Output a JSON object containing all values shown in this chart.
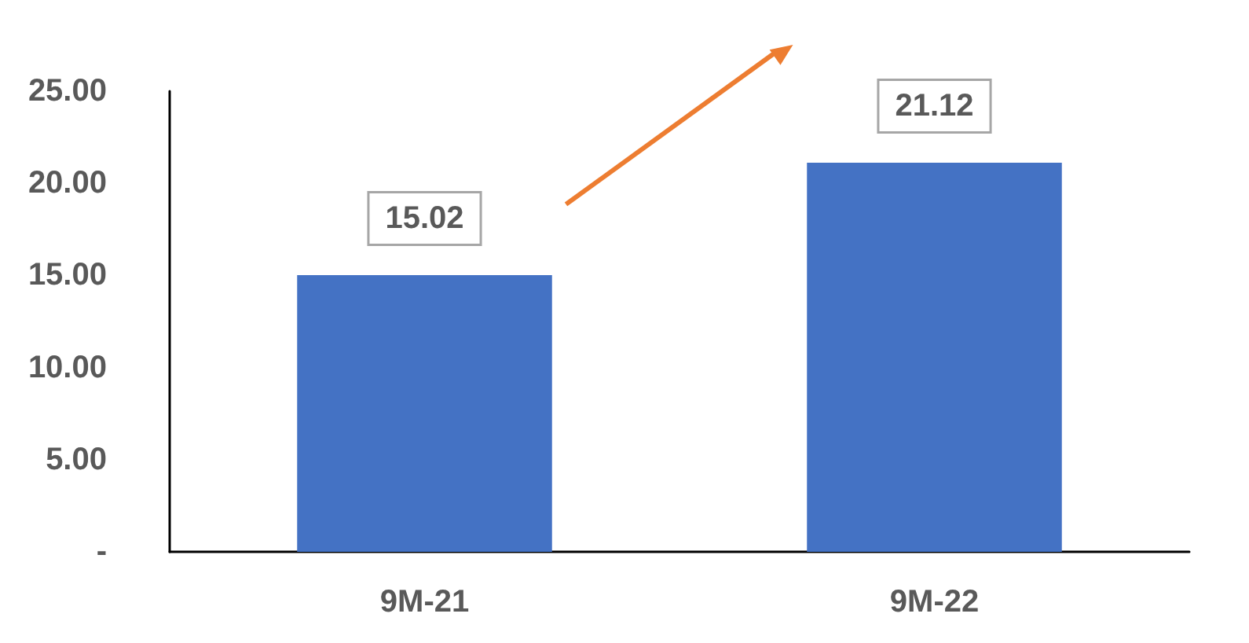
{
  "chart_data": {
    "type": "bar",
    "categories": [
      "9M-21",
      "9M-22"
    ],
    "values": [
      15.02,
      21.12
    ],
    "color": "#4472c4",
    "ylim": [
      0,
      25
    ],
    "yticks": [
      {
        "value": 0,
        "label": "-"
      },
      {
        "value": 5,
        "label": "5.00"
      },
      {
        "value": 10,
        "label": "10.00"
      },
      {
        "value": 15,
        "label": "15.00"
      },
      {
        "value": 20,
        "label": "20.00"
      },
      {
        "value": 25,
        "label": "25.00"
      }
    ],
    "grid": false,
    "data_labels": true
  }
}
